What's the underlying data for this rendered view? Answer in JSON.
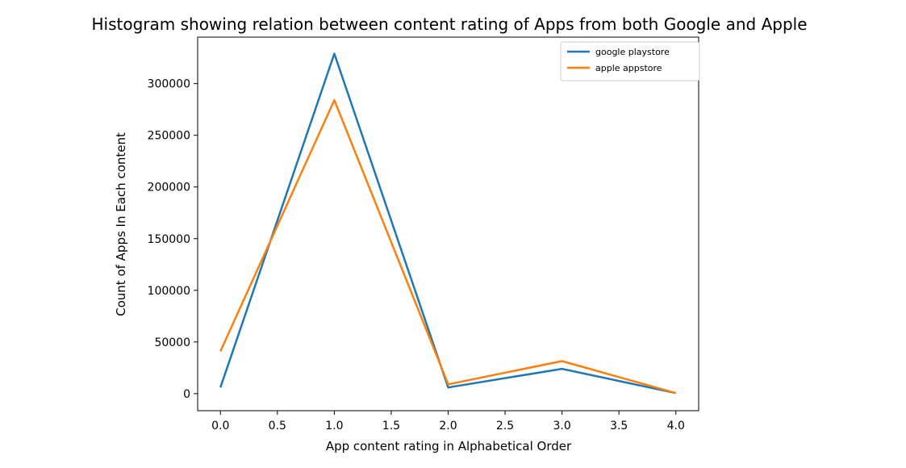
{
  "chart_data": {
    "type": "line",
    "title": "Histogram showing relation between content rating of Apps from both Google and Apple",
    "xlabel": "App content rating in Alphabetical Order",
    "ylabel": "Count of Apps In Each content",
    "x": [
      0,
      1,
      2,
      3,
      4
    ],
    "xlim": [
      -0.2,
      4.2
    ],
    "ylim": [
      -16500,
      345000
    ],
    "xticks": [
      0.0,
      0.5,
      1.0,
      1.5,
      2.0,
      2.5,
      3.0,
      3.5,
      4.0
    ],
    "xtick_labels": [
      "0.0",
      "0.5",
      "1.0",
      "1.5",
      "2.0",
      "2.5",
      "3.0",
      "3.5",
      "4.0"
    ],
    "yticks": [
      0,
      50000,
      100000,
      150000,
      200000,
      250000,
      300000
    ],
    "ytick_labels": [
      "0",
      "50000",
      "100000",
      "150000",
      "200000",
      "250000",
      "300000"
    ],
    "grid": false,
    "legend_position": "top-right",
    "series": [
      {
        "name": "google playstore",
        "color": "#1f77b4",
        "values": [
          6000,
          329000,
          6000,
          24000,
          500
        ]
      },
      {
        "name": "apple appstore",
        "color": "#ff7f0e",
        "values": [
          41000,
          284000,
          9000,
          31500,
          500
        ]
      }
    ]
  }
}
